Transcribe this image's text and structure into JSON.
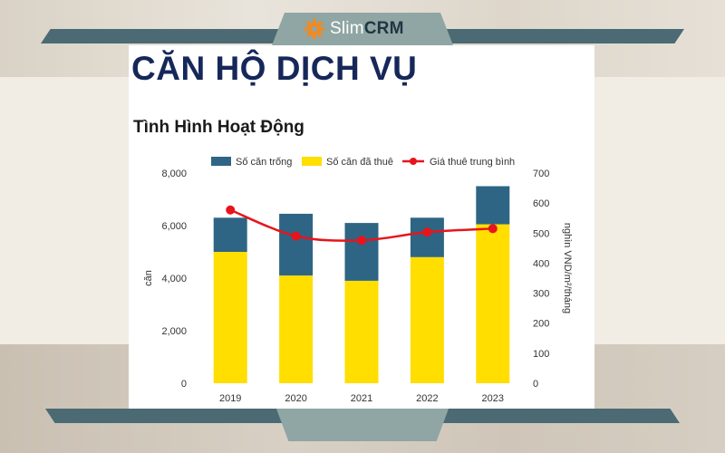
{
  "brand": {
    "name_part1": "Slim",
    "name_part2": "CRM"
  },
  "headline": "CĂN HỘ DỊCH VỤ",
  "subheadline": "Tình Hình Hoạt Động",
  "colors": {
    "empty": "#2e6584",
    "rented": "#ffde00",
    "price": "#e8141b",
    "band": "#4b6a74",
    "title": "#16285a"
  },
  "chart_data": {
    "type": "bar",
    "stacked": true,
    "categories": [
      "2019",
      "2020",
      "2021",
      "2022",
      "2023"
    ],
    "series": [
      {
        "name": "Số căn đã thuê",
        "type": "bar",
        "axis": "left",
        "values": [
          5000,
          4100,
          3900,
          4800,
          6050
        ]
      },
      {
        "name": "Số căn trống",
        "type": "bar",
        "axis": "left",
        "values": [
          1300,
          2350,
          2200,
          1500,
          1450
        ]
      },
      {
        "name": "Giá thuê trung bình",
        "type": "line",
        "axis": "right",
        "values": [
          577,
          490,
          476,
          503,
          515
        ]
      }
    ],
    "legend": [
      "Số căn trống",
      "Số căn đã thuê",
      "Giá thuê trung bình"
    ],
    "legend_position": "top",
    "ylabel": "căn",
    "y2label": "nghìn VND/m²/tháng",
    "ylim": [
      0,
      8000
    ],
    "y2lim": [
      0,
      700
    ],
    "yticks": [
      "0",
      "2,000",
      "4,000",
      "6,000",
      "8,000"
    ],
    "y2ticks": [
      "0",
      "100",
      "200",
      "300",
      "400",
      "500",
      "600",
      "700"
    ],
    "grid": false
  }
}
